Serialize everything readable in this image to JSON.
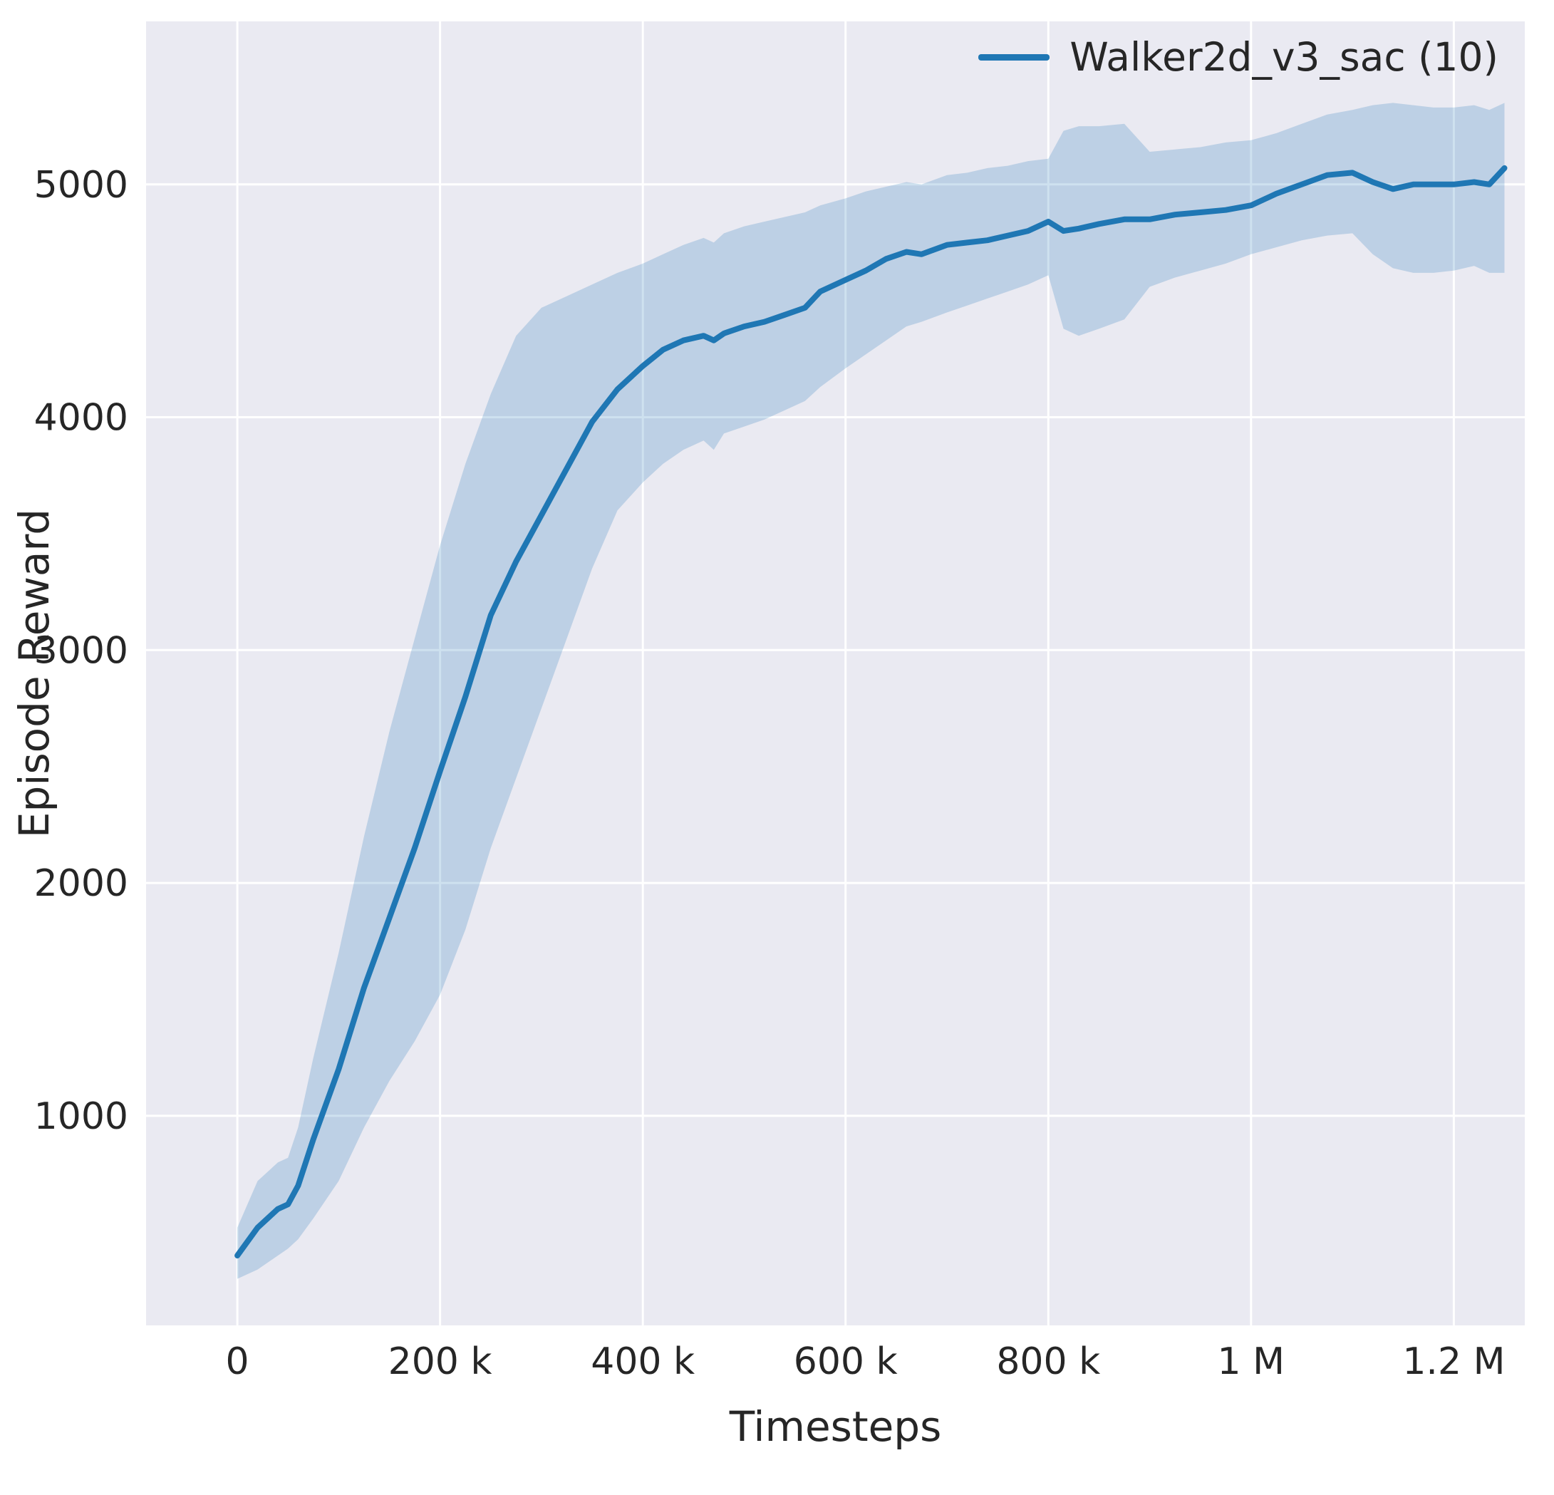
{
  "chart_data": {
    "type": "line",
    "title": "",
    "xlabel": "Timesteps",
    "ylabel": "Episode Reward",
    "grid": true,
    "legend_position": "upper right",
    "legend": [
      {
        "label": "Walker2d_v3_sac (10)",
        "color": "#1f77b4"
      }
    ],
    "xlim": [
      -90000,
      1270000
    ],
    "ylim": [
      100,
      5700
    ],
    "x_ticks": [
      {
        "value": 0,
        "label": "0"
      },
      {
        "value": 200000,
        "label": "200 k"
      },
      {
        "value": 400000,
        "label": "400 k"
      },
      {
        "value": 600000,
        "label": "600 k"
      },
      {
        "value": 800000,
        "label": "800 k"
      },
      {
        "value": 1000000,
        "label": "1 M"
      },
      {
        "value": 1200000,
        "label": "1.2 M"
      }
    ],
    "y_ticks": [
      {
        "value": 1000,
        "label": "1000"
      },
      {
        "value": 2000,
        "label": "2000"
      },
      {
        "value": 3000,
        "label": "3000"
      },
      {
        "value": 4000,
        "label": "4000"
      },
      {
        "value": 5000,
        "label": "5000"
      }
    ],
    "colors": {
      "line": "#1f77b4",
      "band_opacity": 0.22,
      "plot_bg": "#eaeaf2",
      "grid": "#ffffff",
      "tick": "#262626"
    },
    "series": [
      {
        "name": "Walker2d_v3_sac (10)",
        "x": [
          0,
          20000,
          40000,
          50000,
          60000,
          75000,
          100000,
          125000,
          150000,
          175000,
          200000,
          225000,
          250000,
          275000,
          300000,
          325000,
          350000,
          375000,
          400000,
          420000,
          440000,
          460000,
          470000,
          480000,
          500000,
          520000,
          540000,
          560000,
          575000,
          600000,
          620000,
          640000,
          660000,
          675000,
          700000,
          720000,
          740000,
          760000,
          780000,
          800000,
          815000,
          830000,
          850000,
          875000,
          900000,
          925000,
          950000,
          975000,
          1000000,
          1025000,
          1050000,
          1075000,
          1100000,
          1120000,
          1140000,
          1160000,
          1180000,
          1200000,
          1220000,
          1235000,
          1250000
        ],
        "mean": [
          400,
          520,
          600,
          620,
          700,
          900,
          1200,
          1550,
          1850,
          2150,
          2480,
          2800,
          3150,
          3380,
          3580,
          3780,
          3980,
          4120,
          4220,
          4290,
          4330,
          4350,
          4330,
          4360,
          4390,
          4410,
          4440,
          4470,
          4540,
          4590,
          4630,
          4680,
          4710,
          4700,
          4740,
          4750,
          4760,
          4780,
          4800,
          4840,
          4800,
          4810,
          4830,
          4850,
          4850,
          4870,
          4880,
          4890,
          4910,
          4960,
          5000,
          5040,
          5050,
          5010,
          4980,
          5000,
          5000,
          5000,
          5010,
          5000,
          5070
        ],
        "band_lower": [
          300,
          340,
          400,
          430,
          470,
          560,
          720,
          950,
          1150,
          1320,
          1520,
          1800,
          2150,
          2450,
          2750,
          3050,
          3350,
          3600,
          3720,
          3800,
          3860,
          3900,
          3860,
          3930,
          3960,
          3990,
          4030,
          4070,
          4130,
          4210,
          4270,
          4330,
          4390,
          4410,
          4450,
          4480,
          4510,
          4540,
          4570,
          4610,
          4380,
          4350,
          4380,
          4420,
          4560,
          4600,
          4630,
          4660,
          4700,
          4730,
          4760,
          4780,
          4790,
          4700,
          4640,
          4620,
          4620,
          4630,
          4650,
          4620,
          4620
        ],
        "band_upper": [
          520,
          720,
          800,
          820,
          950,
          1250,
          1700,
          2200,
          2650,
          3050,
          3450,
          3800,
          4100,
          4350,
          4470,
          4520,
          4570,
          4620,
          4660,
          4700,
          4740,
          4770,
          4750,
          4790,
          4820,
          4840,
          4860,
          4880,
          4910,
          4940,
          4970,
          4990,
          5010,
          5000,
          5040,
          5050,
          5070,
          5080,
          5100,
          5110,
          5230,
          5250,
          5250,
          5260,
          5140,
          5150,
          5160,
          5180,
          5190,
          5220,
          5260,
          5300,
          5320,
          5340,
          5350,
          5340,
          5330,
          5330,
          5340,
          5320,
          5350
        ]
      }
    ]
  }
}
